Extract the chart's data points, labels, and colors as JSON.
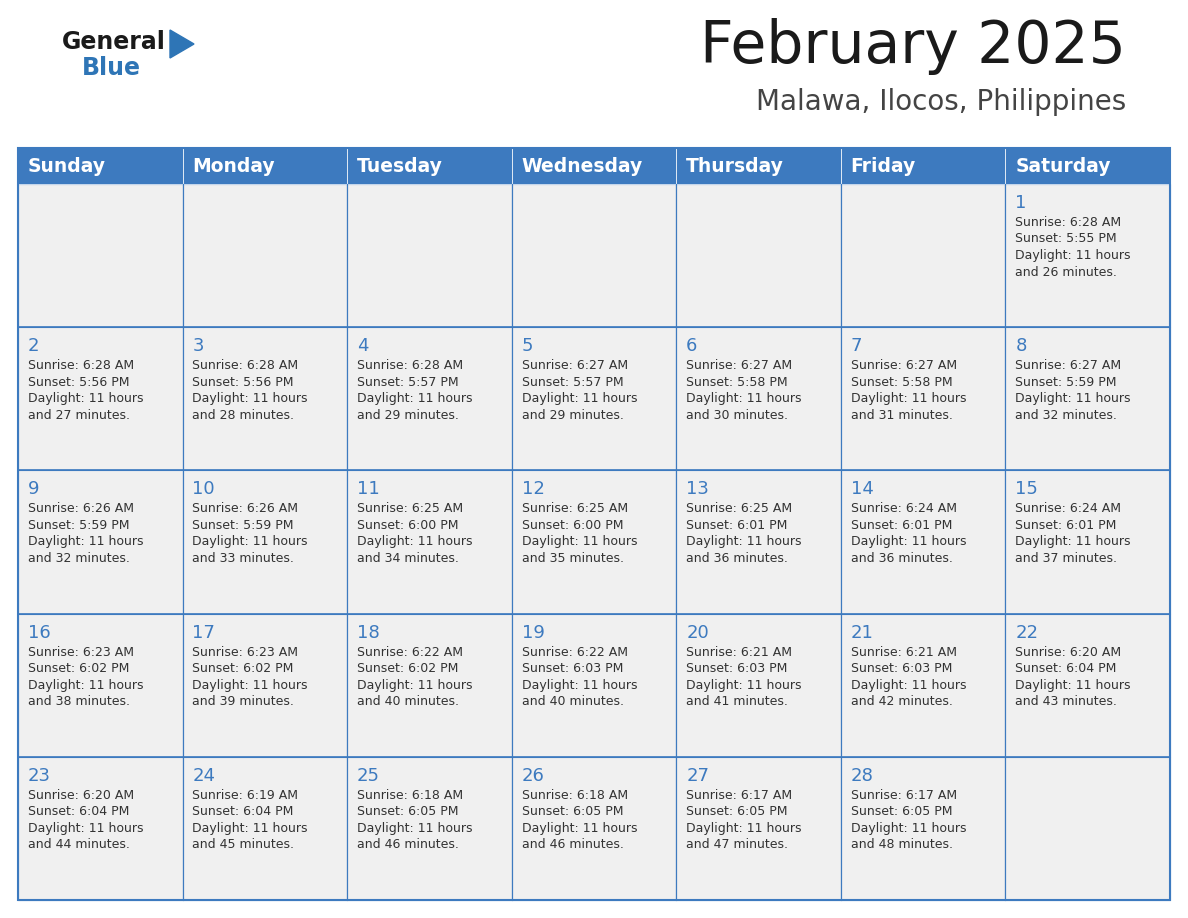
{
  "title": "February 2025",
  "subtitle": "Malawa, Ilocos, Philippines",
  "days_of_week": [
    "Sunday",
    "Monday",
    "Tuesday",
    "Wednesday",
    "Thursday",
    "Friday",
    "Saturday"
  ],
  "header_bg": "#3D7ABF",
  "header_text": "#FFFFFF",
  "cell_bg": "#F0F0F0",
  "cell_border": "#3D7ABF",
  "title_color": "#1A1A1A",
  "subtitle_color": "#444444",
  "day_number_color": "#3D7ABF",
  "cell_text_color": "#333333",
  "calendar_data": [
    [
      null,
      null,
      null,
      null,
      null,
      null,
      {
        "day": 1,
        "sunrise": "6:28 AM",
        "sunset": "5:55 PM",
        "daylight": "11 hours and 26 minutes."
      }
    ],
    [
      {
        "day": 2,
        "sunrise": "6:28 AM",
        "sunset": "5:56 PM",
        "daylight": "11 hours and 27 minutes."
      },
      {
        "day": 3,
        "sunrise": "6:28 AM",
        "sunset": "5:56 PM",
        "daylight": "11 hours and 28 minutes."
      },
      {
        "day": 4,
        "sunrise": "6:28 AM",
        "sunset": "5:57 PM",
        "daylight": "11 hours and 29 minutes."
      },
      {
        "day": 5,
        "sunrise": "6:27 AM",
        "sunset": "5:57 PM",
        "daylight": "11 hours and 29 minutes."
      },
      {
        "day": 6,
        "sunrise": "6:27 AM",
        "sunset": "5:58 PM",
        "daylight": "11 hours and 30 minutes."
      },
      {
        "day": 7,
        "sunrise": "6:27 AM",
        "sunset": "5:58 PM",
        "daylight": "11 hours and 31 minutes."
      },
      {
        "day": 8,
        "sunrise": "6:27 AM",
        "sunset": "5:59 PM",
        "daylight": "11 hours and 32 minutes."
      }
    ],
    [
      {
        "day": 9,
        "sunrise": "6:26 AM",
        "sunset": "5:59 PM",
        "daylight": "11 hours and 32 minutes."
      },
      {
        "day": 10,
        "sunrise": "6:26 AM",
        "sunset": "5:59 PM",
        "daylight": "11 hours and 33 minutes."
      },
      {
        "day": 11,
        "sunrise": "6:25 AM",
        "sunset": "6:00 PM",
        "daylight": "11 hours and 34 minutes."
      },
      {
        "day": 12,
        "sunrise": "6:25 AM",
        "sunset": "6:00 PM",
        "daylight": "11 hours and 35 minutes."
      },
      {
        "day": 13,
        "sunrise": "6:25 AM",
        "sunset": "6:01 PM",
        "daylight": "11 hours and 36 minutes."
      },
      {
        "day": 14,
        "sunrise": "6:24 AM",
        "sunset": "6:01 PM",
        "daylight": "11 hours and 36 minutes."
      },
      {
        "day": 15,
        "sunrise": "6:24 AM",
        "sunset": "6:01 PM",
        "daylight": "11 hours and 37 minutes."
      }
    ],
    [
      {
        "day": 16,
        "sunrise": "6:23 AM",
        "sunset": "6:02 PM",
        "daylight": "11 hours and 38 minutes."
      },
      {
        "day": 17,
        "sunrise": "6:23 AM",
        "sunset": "6:02 PM",
        "daylight": "11 hours and 39 minutes."
      },
      {
        "day": 18,
        "sunrise": "6:22 AM",
        "sunset": "6:02 PM",
        "daylight": "11 hours and 40 minutes."
      },
      {
        "day": 19,
        "sunrise": "6:22 AM",
        "sunset": "6:03 PM",
        "daylight": "11 hours and 40 minutes."
      },
      {
        "day": 20,
        "sunrise": "6:21 AM",
        "sunset": "6:03 PM",
        "daylight": "11 hours and 41 minutes."
      },
      {
        "day": 21,
        "sunrise": "6:21 AM",
        "sunset": "6:03 PM",
        "daylight": "11 hours and 42 minutes."
      },
      {
        "day": 22,
        "sunrise": "6:20 AM",
        "sunset": "6:04 PM",
        "daylight": "11 hours and 43 minutes."
      }
    ],
    [
      {
        "day": 23,
        "sunrise": "6:20 AM",
        "sunset": "6:04 PM",
        "daylight": "11 hours and 44 minutes."
      },
      {
        "day": 24,
        "sunrise": "6:19 AM",
        "sunset": "6:04 PM",
        "daylight": "11 hours and 45 minutes."
      },
      {
        "day": 25,
        "sunrise": "6:18 AM",
        "sunset": "6:05 PM",
        "daylight": "11 hours and 46 minutes."
      },
      {
        "day": 26,
        "sunrise": "6:18 AM",
        "sunset": "6:05 PM",
        "daylight": "11 hours and 46 minutes."
      },
      {
        "day": 27,
        "sunrise": "6:17 AM",
        "sunset": "6:05 PM",
        "daylight": "11 hours and 47 minutes."
      },
      {
        "day": 28,
        "sunrise": "6:17 AM",
        "sunset": "6:05 PM",
        "daylight": "11 hours and 48 minutes."
      },
      null
    ]
  ],
  "logo_general_color": "#1A1A1A",
  "logo_blue_color": "#2E75B6",
  "logo_triangle_color": "#2E75B6"
}
